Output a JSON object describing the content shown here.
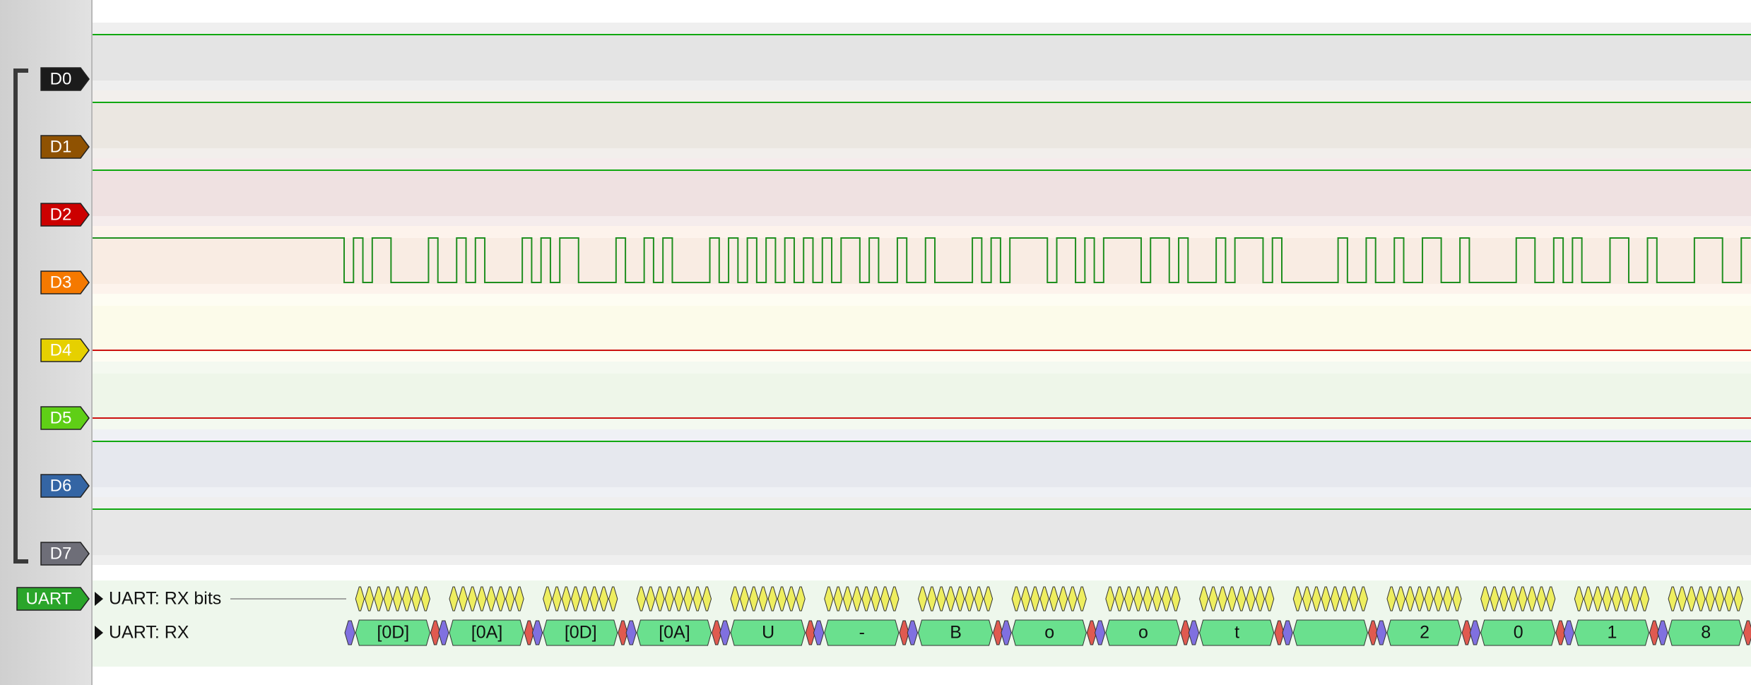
{
  "channels": [
    "D0",
    "D1",
    "D2",
    "D3",
    "D4",
    "D5",
    "D6",
    "D7"
  ],
  "decoder": {
    "label": "UART",
    "rows": [
      "UART: RX bits",
      "UART: RX"
    ],
    "rx": [
      "[0D]",
      "[0A]",
      "[0D]",
      "[0A]",
      "U",
      "-",
      "B",
      "o",
      "o",
      "t",
      "2",
      "0",
      "1",
      "8"
    ]
  }
}
